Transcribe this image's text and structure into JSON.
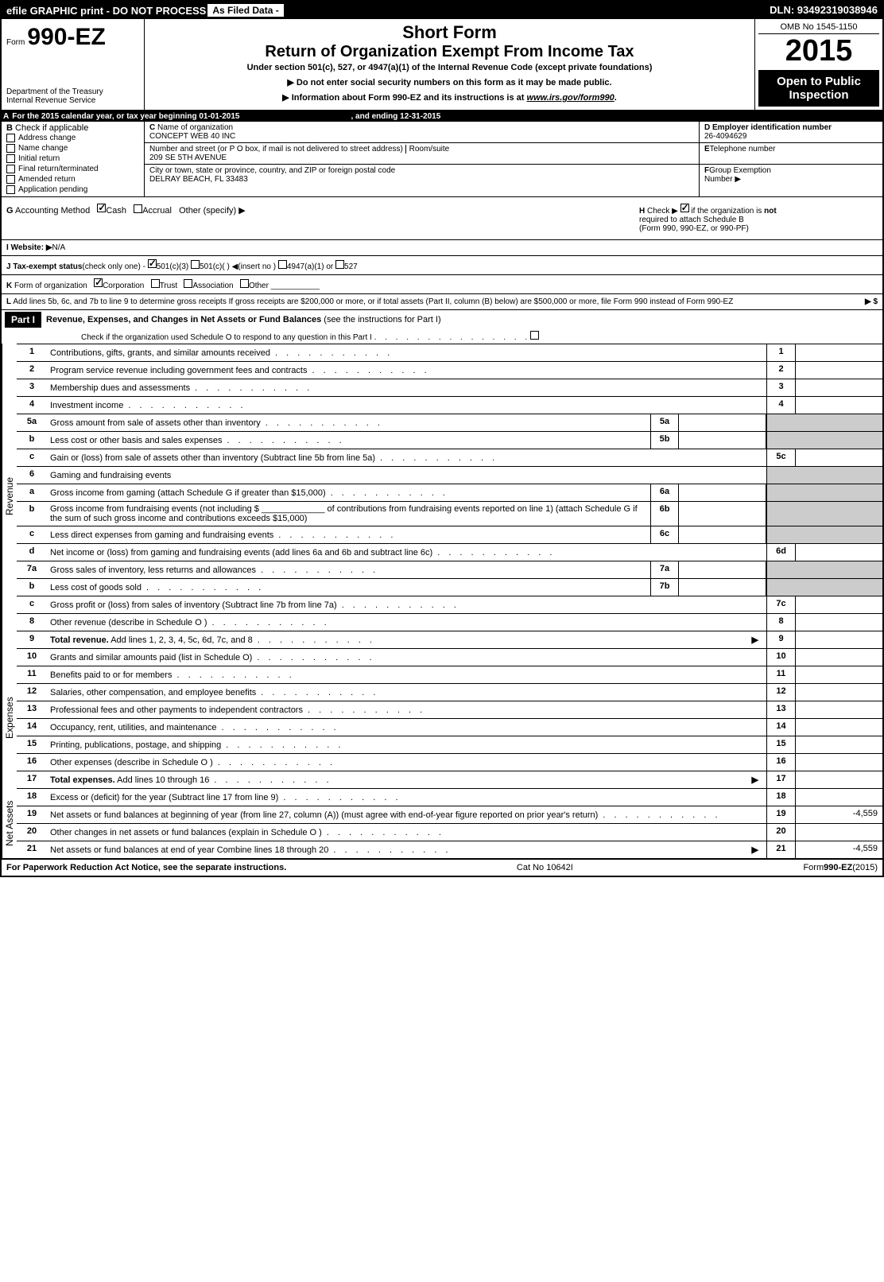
{
  "top": {
    "efile": "efile GRAPHIC print - DO NOT PROCESS",
    "asfiled": "As Filed Data -",
    "dln": "DLN: 93492319038946"
  },
  "header": {
    "form_word": "Form",
    "form_no": "990-EZ",
    "dept": "Department of the Treasury",
    "irs": "Internal Revenue Service",
    "short": "Short Form",
    "title": "Return of Organization Exempt From Income Tax",
    "under": "Under section 501(c), 527, or 4947(a)(1) of the Internal Revenue Code (except private foundations)",
    "ssn": "▶ Do not enter social security numbers on this form as it may be made public.",
    "info": "Information about Form 990-EZ and its instructions is at",
    "info_link": "www.irs.gov/form990",
    "omb": "OMB No 1545-1150",
    "year": "2015",
    "open1": "Open to Public",
    "open2": "Inspection"
  },
  "a": {
    "text": "For the 2015 calendar year, or tax year beginning 01-01-2015",
    "ending": ", and ending 12-31-2015"
  },
  "b": {
    "title": "Check if applicable",
    "c1": "Address change",
    "c2": "Name change",
    "c3": "Initial return",
    "c4": "Final return/terminated",
    "c5": "Amended return",
    "c6": "Application pending"
  },
  "c": {
    "name_label": "Name of organization",
    "name": "CONCEPT WEB 40 INC",
    "addr_label": "Number and street (or P O box, if mail is not delivered to street address)",
    "room": "Room/suite",
    "addr": "209 SE 5TH AVENUE",
    "city_label": "City or town, state or province, country, and ZIP or foreign postal code",
    "city": "DELRAY BEACH, FL 33483"
  },
  "d": {
    "label": "Employer identification number",
    "ein": "26-4094629",
    "e_label": "Telephone number",
    "f_label": "Group Exemption",
    "f_label2": "Number  ▶"
  },
  "g": {
    "label": "Accounting Method",
    "cash": "Cash",
    "accrual": "Accrual",
    "other": "Other (specify) ▶"
  },
  "h": {
    "text1": "Check ▶",
    "text2": "if the organization is",
    "not": "not",
    "text3": "required to attach Schedule B",
    "text4": "(Form 990, 990-EZ, or 990-PF)"
  },
  "i": {
    "label": "Website: ▶",
    "val": "N/A"
  },
  "j": {
    "label": "Tax-exempt status",
    "sub": "(check only one) -",
    "o1": "501(c)(3)",
    "o2": "501(c)(  ) ◀(insert no )",
    "o3": "4947(a)(1) or",
    "o4": "527"
  },
  "k": {
    "label": "Form of organization",
    "o1": "Corporation",
    "o2": "Trust",
    "o3": "Association",
    "o4": "Other"
  },
  "l": {
    "text": "Add lines 5b, 6c, and 7b to line 9 to determine gross receipts If gross receipts are $200,000 or more, or if total assets (Part II, column (B) below) are $500,000 or more, file Form 990 instead of Form 990-EZ",
    "arrow": "▶ $"
  },
  "part1": {
    "label": "Part I",
    "title": "Revenue, Expenses, and Changes in Net Assets or Fund Balances",
    "sub": "(see the instructions for Part I)",
    "check": "Check if the organization used Schedule O to respond to any question in this Part I"
  },
  "sides": {
    "rev": "Revenue",
    "exp": "Expenses",
    "net": "Net Assets"
  },
  "lines": {
    "l1": {
      "n": "1",
      "d": "Contributions, gifts, grants, and similar amounts received",
      "box": "1"
    },
    "l2": {
      "n": "2",
      "d": "Program service revenue including government fees and contracts",
      "box": "2"
    },
    "l3": {
      "n": "3",
      "d": "Membership dues and assessments",
      "box": "3"
    },
    "l4": {
      "n": "4",
      "d": "Investment income",
      "box": "4"
    },
    "l5a": {
      "n": "5a",
      "d": "Gross amount from sale of assets other than inventory",
      "mid": "5a"
    },
    "l5b": {
      "n": "b",
      "d": "Less cost or other basis and sales expenses",
      "mid": "5b"
    },
    "l5c": {
      "n": "c",
      "d": "Gain or (loss) from sale of assets other than inventory (Subtract line 5b from line 5a)",
      "box": "5c"
    },
    "l6": {
      "n": "6",
      "d": "Gaming and fundraising events"
    },
    "l6a": {
      "n": "a",
      "d": "Gross income from gaming (attach Schedule G if greater than $15,000)",
      "mid": "6a"
    },
    "l6b": {
      "n": "b",
      "d": "Gross income from fundraising events (not including $ _____________ of contributions from fundraising events reported on line 1) (attach Schedule G if the sum of such gross income and contributions exceeds $15,000)",
      "mid": "6b"
    },
    "l6c": {
      "n": "c",
      "d": "Less direct expenses from gaming and fundraising events",
      "mid": "6c"
    },
    "l6d": {
      "n": "d",
      "d": "Net income or (loss) from gaming and fundraising events (add lines 6a and 6b and subtract line 6c)",
      "box": "6d"
    },
    "l7a": {
      "n": "7a",
      "d": "Gross sales of inventory, less returns and allowances",
      "mid": "7a"
    },
    "l7b": {
      "n": "b",
      "d": "Less cost of goods sold",
      "mid": "7b"
    },
    "l7c": {
      "n": "c",
      "d": "Gross profit or (loss) from sales of inventory (Subtract line 7b from line 7a)",
      "box": "7c"
    },
    "l8": {
      "n": "8",
      "d": "Other revenue (describe in Schedule O )",
      "box": "8"
    },
    "l9": {
      "n": "9",
      "d": "Total revenue. Add lines 1, 2, 3, 4, 5c, 6d, 7c, and 8",
      "box": "9",
      "arrow": "▶",
      "bold": true
    },
    "l10": {
      "n": "10",
      "d": "Grants and similar amounts paid (list in Schedule O)",
      "box": "10"
    },
    "l11": {
      "n": "11",
      "d": "Benefits paid to or for members",
      "box": "11"
    },
    "l12": {
      "n": "12",
      "d": "Salaries, other compensation, and employee benefits",
      "box": "12"
    },
    "l13": {
      "n": "13",
      "d": "Professional fees and other payments to independent contractors",
      "box": "13"
    },
    "l14": {
      "n": "14",
      "d": "Occupancy, rent, utilities, and maintenance",
      "box": "14"
    },
    "l15": {
      "n": "15",
      "d": "Printing, publications, postage, and shipping",
      "box": "15"
    },
    "l16": {
      "n": "16",
      "d": "Other expenses (describe in Schedule O )",
      "box": "16"
    },
    "l17": {
      "n": "17",
      "d": "Total expenses. Add lines 10 through 16",
      "box": "17",
      "arrow": "▶",
      "bold": true
    },
    "l18": {
      "n": "18",
      "d": "Excess or (deficit) for the year (Subtract line 17 from line 9)",
      "box": "18"
    },
    "l19": {
      "n": "19",
      "d": "Net assets or fund balances at beginning of year (from line 27, column (A)) (must agree with end-of-year figure reported on prior year's return)",
      "box": "19",
      "val": "-4,559"
    },
    "l20": {
      "n": "20",
      "d": "Other changes in net assets or fund balances (explain in Schedule O )",
      "box": "20"
    },
    "l21": {
      "n": "21",
      "d": "Net assets or fund balances at end of year Combine lines 18 through 20",
      "box": "21",
      "arrow": "▶",
      "val": "-4,559"
    }
  },
  "footer": {
    "left": "For Paperwork Reduction Act Notice, see the separate instructions.",
    "center": "Cat No 10642I",
    "right": "Form",
    "right_bold": "990-EZ",
    "right_year": "(2015)"
  }
}
